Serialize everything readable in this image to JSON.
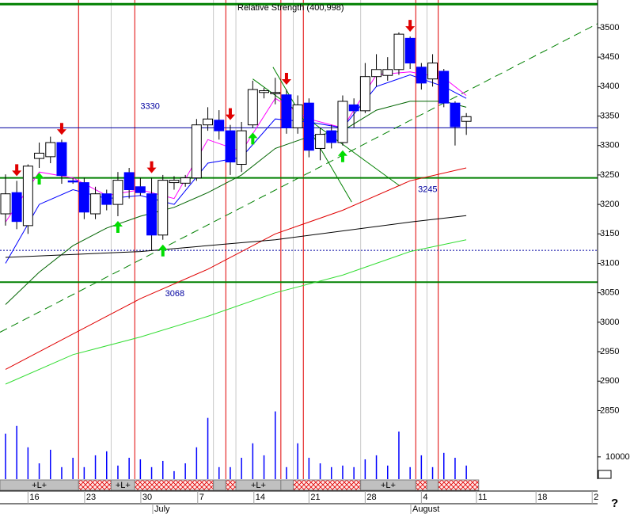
{
  "chart_data": {
    "type": "candlestick",
    "title": "Relative Strength (400,998)",
    "xlim": [
      -0.49,
      52.68
    ],
    "xticks": [
      {
        "value": 2,
        "label": "16"
      },
      {
        "value": 7.04,
        "label": "23"
      },
      {
        "value": 12.04,
        "label": "30"
      },
      {
        "value": 17.1,
        "label": "7"
      },
      {
        "value": 22.1,
        "label": "14"
      },
      {
        "value": 27,
        "label": "21"
      },
      {
        "value": 32,
        "label": "28"
      },
      {
        "value": 37,
        "label": "4"
      },
      {
        "value": 41.9,
        "label": "11"
      },
      {
        "value": 47.2,
        "label": "18"
      },
      {
        "value": 52.2,
        "label": "2"
      }
    ],
    "months": [
      {
        "value": 13.1,
        "label": "July"
      },
      {
        "value": 36.06,
        "label": "August"
      }
    ],
    "ylim": [
      2821,
      3547
    ],
    "yticks": [
      2850,
      2900,
      2950,
      3000,
      3050,
      3100,
      3150,
      3200,
      3250,
      3300,
      3350,
      3400,
      3450,
      3500
    ],
    "up_color": "#ffffff",
    "down_color": "#0000ff",
    "open": [
      3184,
      3220,
      3164,
      3278,
      3281,
      3305,
      3240,
      3237,
      3184,
      3218,
      3200,
      3254,
      3230,
      3218,
      3148,
      3237,
      3236,
      3245,
      3335,
      3343,
      3325,
      3268,
      3335,
      3390,
      3388,
      3386,
      3330,
      3372,
      3295,
      3325,
      3305,
      3369,
      3359,
      3417,
      3419,
      3429,
      3482,
      3433,
      3413,
      3426,
      3372,
      3341
    ],
    "high": [
      3251,
      3240,
      3268,
      3305,
      3315,
      3310,
      3245,
      3245,
      3230,
      3225,
      3255,
      3262,
      3245,
      3245,
      3250,
      3248,
      3250,
      3345,
      3365,
      3360,
      3335,
      3340,
      3410,
      3398,
      3415,
      3395,
      3385,
      3380,
      3330,
      3335,
      3385,
      3380,
      3440,
      3455,
      3450,
      3492,
      3485,
      3440,
      3455,
      3430,
      3375,
      3355
    ],
    "low": [
      3164,
      3158,
      3150,
      3262,
      3270,
      3235,
      3235,
      3175,
      3175,
      3190,
      3180,
      3210,
      3215,
      3122,
      3140,
      3225,
      3230,
      3240,
      3325,
      3310,
      3250,
      3255,
      3330,
      3380,
      3370,
      3320,
      3320,
      3280,
      3275,
      3295,
      3300,
      3330,
      3355,
      3400,
      3410,
      3420,
      3430,
      3395,
      3400,
      3365,
      3300,
      3318
    ],
    "close": [
      3218,
      3171,
      3265,
      3287,
      3305,
      3249,
      3238,
      3187,
      3218,
      3200,
      3241,
      3225,
      3220,
      3148,
      3241,
      3241,
      3245,
      3335,
      3345,
      3325,
      3272,
      3325,
      3395,
      3393,
      3390,
      3330,
      3369,
      3292,
      3319,
      3305,
      3375,
      3359,
      3417,
      3429,
      3429,
      3489,
      3440,
      3406,
      3440,
      3372,
      3332,
      3349
    ],
    "lines": [
      {
        "color": "#ff00ff",
        "x": [
          0,
          3,
          6,
          9,
          12,
          15,
          18,
          21,
          24,
          27,
          30,
          33,
          36,
          39,
          41
        ],
        "values": [
          3170,
          3255,
          3245,
          3215,
          3225,
          3210,
          3310,
          3290,
          3380,
          3345,
          3330,
          3420,
          3425,
          3415,
          3385
        ]
      },
      {
        "color": "#0000ff",
        "x": [
          0,
          3,
          6,
          9,
          12,
          15,
          18,
          21,
          24,
          27,
          30,
          33,
          36,
          39,
          41
        ],
        "values": [
          3100,
          3200,
          3225,
          3210,
          3215,
          3200,
          3270,
          3280,
          3345,
          3340,
          3330,
          3400,
          3420,
          3400,
          3380
        ]
      },
      {
        "color": "#006400",
        "x": [
          0,
          3,
          6,
          9,
          12,
          15,
          18,
          21,
          24,
          27,
          30,
          33,
          36,
          39,
          41
        ],
        "values": [
          3030,
          3085,
          3130,
          3160,
          3180,
          3195,
          3220,
          3250,
          3295,
          3315,
          3325,
          3360,
          3375,
          3375,
          3365
        ]
      },
      {
        "color": "#e00000",
        "x": [
          0,
          6,
          12,
          18,
          24,
          30,
          36,
          41
        ],
        "values": [
          2920,
          2980,
          3040,
          3090,
          3150,
          3190,
          3240,
          3262
        ]
      },
      {
        "color": "#000000",
        "x": [
          0,
          12,
          24,
          36,
          41
        ],
        "values": [
          3110,
          3120,
          3140,
          3170,
          3181
        ]
      },
      {
        "color": "#33dd33",
        "x": [
          0,
          6,
          12,
          18,
          24,
          30,
          36,
          41
        ],
        "values": [
          2895,
          2945,
          2975,
          3010,
          3050,
          3080,
          3120,
          3140
        ]
      }
    ],
    "trendlines": [
      {
        "color": "#008000",
        "dashed": true,
        "x": [
          -0.49,
          52.68
        ],
        "values": [
          2983,
          3507
        ]
      },
      {
        "color": "#008000",
        "dashed": false,
        "x": [
          23.8,
          30.8
        ],
        "values": [
          3433,
          3204
        ]
      },
      {
        "color": "#008000",
        "dashed": false,
        "x": [
          22.0,
          35.1
        ],
        "values": [
          3413,
          3231
        ]
      }
    ],
    "levels": [
      {
        "value": 3330,
        "color": "#0000a0"
      },
      {
        "value": 3245,
        "color": "#008000"
      },
      {
        "value": 3068,
        "color": "#008000"
      }
    ],
    "hlines": [
      {
        "value": 3540,
        "color": "#008000",
        "style": "thick"
      },
      {
        "value": 3122,
        "color": "#0000a0",
        "style": "dotted"
      }
    ],
    "vlines": [
      {
        "x": 6.5,
        "color": "#e00000"
      },
      {
        "x": 11.5,
        "color": "#e00000"
      },
      {
        "x": 19.6,
        "color": "#e00000"
      },
      {
        "x": 24.5,
        "color": "#e00000"
      },
      {
        "x": 26.5,
        "color": "#e00000"
      },
      {
        "x": 36.5,
        "color": "#e00000"
      },
      {
        "x": 38.5,
        "color": "#e00000"
      },
      {
        "x": 9.4,
        "color": "#c8c8c8"
      },
      {
        "x": 18.5,
        "color": "#c8c8c8"
      },
      {
        "x": 20.5,
        "color": "#c8c8c8"
      },
      {
        "x": 25.6,
        "color": "#c8c8c8"
      },
      {
        "x": 31.6,
        "color": "#c8c8c8"
      },
      {
        "x": 37.5,
        "color": "#c8c8c8"
      }
    ],
    "signals": {
      "sell": [
        1,
        5,
        13,
        20,
        25,
        36
      ],
      "buy": [
        3,
        10,
        14,
        22,
        30
      ],
      "sell_color": "#e00000",
      "buy_color": "#00dd00"
    },
    "volume": {
      "values": [
        20400,
        23900,
        14300,
        7100,
        13200,
        5400,
        9600,
        5400,
        10700,
        12500,
        6100,
        9600,
        8900,
        5400,
        8200,
        3600,
        7100,
        14300,
        27500,
        5400,
        5400,
        9600,
        16100,
        10700,
        30400,
        5400,
        16100,
        9600,
        7100,
        5400,
        6100,
        5400,
        8900,
        10700,
        6100,
        21400,
        5400,
        10700,
        5400,
        11800,
        9600,
        6100
      ],
      "ylim": [
        0,
        32000
      ],
      "yticks": [
        10000
      ],
      "color": "#0000ff"
    },
    "status": [
      {
        "from": -0.49,
        "to": 6.5,
        "hatched": false,
        "label": "+L+"
      },
      {
        "from": 6.5,
        "to": 9.4,
        "hatched": true
      },
      {
        "from": 9.4,
        "to": 11.5,
        "hatched": false,
        "label": "+L+"
      },
      {
        "from": 11.5,
        "to": 18.5,
        "hatched": true
      },
      {
        "from": 18.5,
        "to": 19.6,
        "hatched": false
      },
      {
        "from": 19.6,
        "to": 20.5,
        "hatched": true
      },
      {
        "from": 20.5,
        "to": 24.5,
        "hatched": false,
        "label": "+L+"
      },
      {
        "from": 24.5,
        "to": 25.6,
        "hatched": false
      },
      {
        "from": 25.6,
        "to": 31.6,
        "hatched": true
      },
      {
        "from": 31.6,
        "to": 36.5,
        "hatched": false,
        "label": "+L+"
      },
      {
        "from": 36.5,
        "to": 37.5,
        "hatched": true
      },
      {
        "from": 37.5,
        "to": 38.5,
        "hatched": false
      },
      {
        "from": 38.5,
        "to": 42.1,
        "hatched": true
      }
    ],
    "help": "?"
  }
}
